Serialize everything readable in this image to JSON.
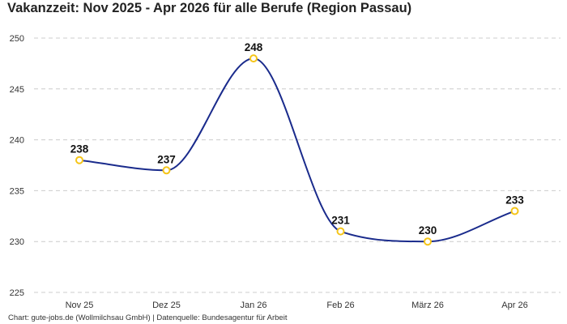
{
  "title": "Vakanzzeit: Nov 2025 - Apr 2026 für alle Berufe (Region Passau)",
  "footer": "Chart: gute-jobs.de (Wollmilchsau GmbH) | Datenquelle: Bundesagentur für Arbeit",
  "colors": {
    "line": "#1a2b8c",
    "marker": "#f5c518",
    "grid": "#cccccc"
  },
  "chart_data": {
    "type": "line",
    "title": "Vakanzzeit: Nov 2025 - Apr 2026 für alle Berufe (Region Passau)",
    "categories": [
      "Nov 25",
      "Dez 25",
      "Jan 26",
      "Feb 26",
      "März 26",
      "Apr 26"
    ],
    "values": [
      238,
      237,
      248,
      231,
      230,
      233
    ],
    "data_labels": [
      "238",
      "237",
      "248",
      "231",
      "230",
      "233"
    ],
    "yticks": [
      "225",
      "230",
      "235",
      "240",
      "245",
      "250"
    ],
    "ylim": [
      225,
      250
    ],
    "grid": true,
    "legend": "none"
  }
}
